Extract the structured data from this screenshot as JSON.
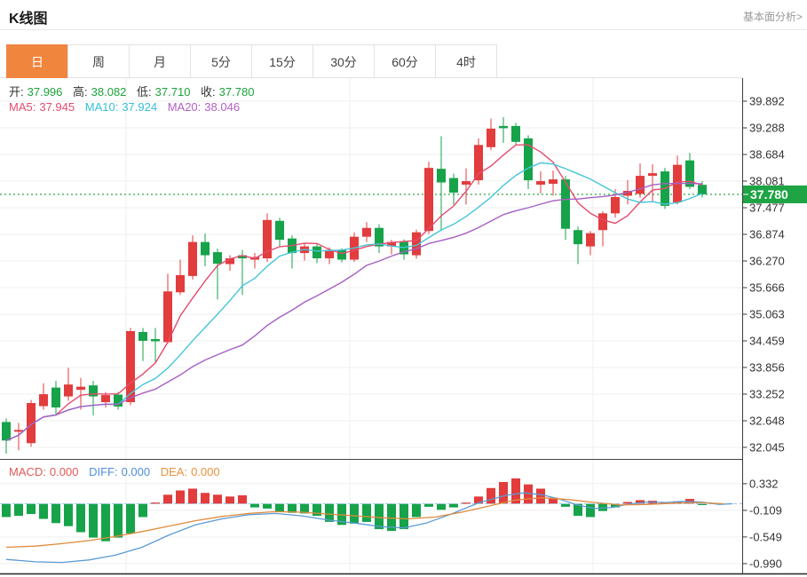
{
  "header": {
    "title": "K线图",
    "link": "基本面分析>"
  },
  "tabs": {
    "items": [
      "日",
      "周",
      "月",
      "5分",
      "15分",
      "30分",
      "60分",
      "4时"
    ],
    "selected_index": 0
  },
  "ohlc": {
    "open_label": "开:",
    "open": "37.996",
    "high_label": "高:",
    "high": "38.082",
    "low_label": "低:",
    "low": "37.710",
    "close_label": "收:",
    "close": "37.780"
  },
  "ma_readout": {
    "ma5_label": "MA5:",
    "ma5": "37.945",
    "ma10_label": "MA10:",
    "ma10": "37.924",
    "ma20_label": "MA20:",
    "ma20": "38.046"
  },
  "macd_readout": {
    "macd_label": "MACD:",
    "macd": "0.000",
    "diff_label": "DIFF:",
    "diff": "0.000",
    "dea_label": "DEA:",
    "dea": "0.000"
  },
  "price_axis": {
    "ticks": [
      "39.892",
      "39.288",
      "38.684",
      "38.081",
      "37.477",
      "36.874",
      "36.270",
      "35.666",
      "35.063",
      "34.459",
      "33.856",
      "33.252",
      "32.648",
      "32.045"
    ],
    "last_price_label": "37.780"
  },
  "macd_axis": {
    "ticks": [
      "0.332",
      "-0.109",
      "-0.549",
      "-0.990"
    ]
  },
  "colors": {
    "up": "#e23c3c",
    "down": "#16a34a",
    "ma5": "#e64c6e",
    "ma10": "#45c5da",
    "ma20": "#a660c3",
    "diff": "#5b9bd5",
    "dea": "#e08a3c",
    "price_line": "#3db154",
    "badge": "#1ea444",
    "grid": "#efefef",
    "axis": "#3c3c3c",
    "zero_dash": "#9fc5e8",
    "tab_active": "#f0853e"
  },
  "chart_data": [
    {
      "type": "candlestick",
      "title": "K线图 (日)",
      "legend": [
        "MA5",
        "MA10",
        "MA20"
      ],
      "y_ticks": [
        39.892,
        39.288,
        38.684,
        38.081,
        37.477,
        36.874,
        36.27,
        35.666,
        35.063,
        34.459,
        33.856,
        33.252,
        32.648,
        32.045
      ],
      "ylim": [
        31.8,
        40.1
      ],
      "last_price": 37.78,
      "ma_periods": [
        5,
        10,
        20
      ],
      "v_gridlines_x": [
        142,
        394,
        668
      ],
      "candles": [
        [
          32.62,
          32.7,
          31.9,
          32.2
        ],
        [
          32.4,
          32.6,
          31.98,
          32.44
        ],
        [
          32.14,
          33.12,
          32.06,
          33.05
        ],
        [
          32.98,
          33.5,
          32.9,
          33.25
        ],
        [
          33.4,
          33.55,
          32.8,
          32.95
        ],
        [
          33.2,
          33.85,
          33.1,
          33.47
        ],
        [
          33.35,
          33.62,
          32.9,
          33.42
        ],
        [
          33.45,
          33.55,
          32.77,
          33.2
        ],
        [
          33.07,
          33.3,
          32.95,
          33.23
        ],
        [
          33.24,
          33.3,
          32.9,
          32.97
        ],
        [
          33.07,
          34.75,
          33.0,
          34.68
        ],
        [
          34.66,
          34.75,
          34.0,
          34.46
        ],
        [
          34.5,
          34.75,
          33.95,
          34.45
        ],
        [
          34.43,
          35.98,
          34.4,
          35.58
        ],
        [
          35.56,
          36.3,
          35.5,
          35.95
        ],
        [
          35.93,
          36.85,
          35.85,
          36.7
        ],
        [
          36.7,
          36.9,
          36.15,
          36.4
        ],
        [
          36.47,
          36.55,
          35.4,
          36.21
        ],
        [
          36.2,
          36.4,
          36.05,
          36.33
        ],
        [
          36.4,
          36.52,
          35.5,
          36.33
        ],
        [
          36.3,
          36.45,
          36.1,
          36.36
        ],
        [
          36.33,
          37.35,
          36.25,
          37.2
        ],
        [
          37.18,
          37.25,
          36.6,
          36.75
        ],
        [
          36.78,
          36.85,
          36.1,
          36.45
        ],
        [
          36.45,
          36.68,
          36.28,
          36.6
        ],
        [
          36.6,
          36.66,
          36.22,
          36.33
        ],
        [
          36.33,
          36.58,
          36.2,
          36.52
        ],
        [
          36.52,
          36.56,
          36.24,
          36.3
        ],
        [
          36.3,
          36.92,
          36.25,
          36.82
        ],
        [
          36.82,
          37.15,
          36.7,
          37.02
        ],
        [
          37.02,
          37.1,
          36.45,
          36.6
        ],
        [
          36.6,
          36.75,
          36.42,
          36.7
        ],
        [
          36.7,
          36.76,
          36.3,
          36.42
        ],
        [
          36.4,
          36.98,
          36.32,
          36.92
        ],
        [
          36.95,
          38.52,
          36.88,
          38.38
        ],
        [
          38.36,
          39.1,
          36.95,
          38.05
        ],
        [
          38.15,
          38.25,
          37.55,
          37.82
        ],
        [
          38.0,
          38.37,
          37.55,
          38.08
        ],
        [
          38.1,
          39.05,
          38.0,
          38.9
        ],
        [
          38.85,
          39.5,
          38.78,
          39.27
        ],
        [
          39.33,
          39.53,
          38.95,
          39.28
        ],
        [
          39.33,
          39.4,
          38.9,
          38.97
        ],
        [
          39.05,
          39.12,
          37.9,
          38.1
        ],
        [
          38.0,
          38.3,
          37.8,
          38.08
        ],
        [
          38.02,
          38.32,
          37.75,
          38.12
        ],
        [
          38.12,
          38.2,
          36.75,
          37.0
        ],
        [
          36.97,
          37.05,
          36.2,
          36.65
        ],
        [
          36.6,
          36.95,
          36.4,
          36.9
        ],
        [
          36.97,
          37.4,
          36.6,
          37.35
        ],
        [
          37.35,
          37.9,
          37.25,
          37.72
        ],
        [
          37.75,
          38.1,
          37.55,
          37.86
        ],
        [
          37.79,
          38.48,
          37.7,
          38.2
        ],
        [
          38.2,
          38.46,
          37.62,
          38.26
        ],
        [
          38.3,
          38.38,
          37.45,
          37.52
        ],
        [
          37.6,
          38.66,
          37.55,
          38.45
        ],
        [
          38.55,
          38.72,
          37.9,
          37.95
        ],
        [
          37.996,
          38.082,
          37.71,
          37.78
        ]
      ]
    },
    {
      "type": "bar",
      "name": "MACD",
      "y_ticks": [
        0.332,
        -0.109,
        -0.549,
        -0.99
      ],
      "histogram": [
        -0.22,
        -0.2,
        -0.17,
        -0.25,
        -0.32,
        -0.37,
        -0.47,
        -0.56,
        -0.62,
        -0.56,
        -0.49,
        -0.22,
        0.02,
        0.15,
        0.22,
        0.25,
        0.18,
        0.15,
        0.12,
        0.14,
        -0.06,
        -0.08,
        -0.13,
        -0.15,
        -0.16,
        -0.2,
        -0.3,
        -0.35,
        -0.33,
        -0.3,
        -0.42,
        -0.45,
        -0.42,
        -0.22,
        -0.05,
        -0.1,
        -0.06,
        0.02,
        0.12,
        0.26,
        0.36,
        0.42,
        0.32,
        0.25,
        0.1,
        -0.05,
        -0.2,
        -0.22,
        -0.12,
        -0.06,
        0.03,
        0.06,
        0.05,
        0.03,
        0.04,
        0.08,
        -0.02
      ],
      "diff_line": [
        [
          7,
          -0.92
        ],
        [
          40,
          -0.96
        ],
        [
          70,
          -0.97
        ],
        [
          100,
          -0.93
        ],
        [
          130,
          -0.85
        ],
        [
          160,
          -0.72
        ],
        [
          190,
          -0.52
        ],
        [
          220,
          -0.35
        ],
        [
          250,
          -0.25
        ],
        [
          280,
          -0.18
        ],
        [
          310,
          -0.16
        ],
        [
          340,
          -0.2
        ],
        [
          370,
          -0.27
        ],
        [
          400,
          -0.32
        ],
        [
          430,
          -0.38
        ],
        [
          455,
          -0.4
        ],
        [
          480,
          -0.32
        ],
        [
          510,
          -0.16
        ],
        [
          540,
          0.02
        ],
        [
          570,
          0.14
        ],
        [
          590,
          0.18
        ],
        [
          610,
          0.15
        ],
        [
          630,
          0.08
        ],
        [
          650,
          -0.02
        ],
        [
          670,
          -0.08
        ],
        [
          690,
          -0.06
        ],
        [
          710,
          0.0
        ],
        [
          730,
          0.03
        ],
        [
          750,
          0.02
        ],
        [
          770,
          0.04
        ],
        [
          790,
          0.03
        ],
        [
          810,
          -0.01
        ],
        [
          825,
          0.0
        ]
      ],
      "dea_line": [
        [
          7,
          -0.72
        ],
        [
          40,
          -0.7
        ],
        [
          70,
          -0.66
        ],
        [
          100,
          -0.61
        ],
        [
          130,
          -0.54
        ],
        [
          160,
          -0.46
        ],
        [
          190,
          -0.37
        ],
        [
          220,
          -0.28
        ],
        [
          250,
          -0.21
        ],
        [
          280,
          -0.16
        ],
        [
          310,
          -0.13
        ],
        [
          340,
          -0.14
        ],
        [
          370,
          -0.17
        ],
        [
          400,
          -0.2
        ],
        [
          430,
          -0.23
        ],
        [
          460,
          -0.25
        ],
        [
          490,
          -0.22
        ],
        [
          520,
          -0.14
        ],
        [
          550,
          -0.04
        ],
        [
          580,
          0.06
        ],
        [
          610,
          0.1
        ],
        [
          640,
          0.07
        ],
        [
          670,
          0.02
        ],
        [
          700,
          -0.02
        ],
        [
          730,
          -0.01
        ],
        [
          760,
          0.01
        ],
        [
          790,
          0.02
        ],
        [
          815,
          0.0
        ]
      ]
    }
  ]
}
